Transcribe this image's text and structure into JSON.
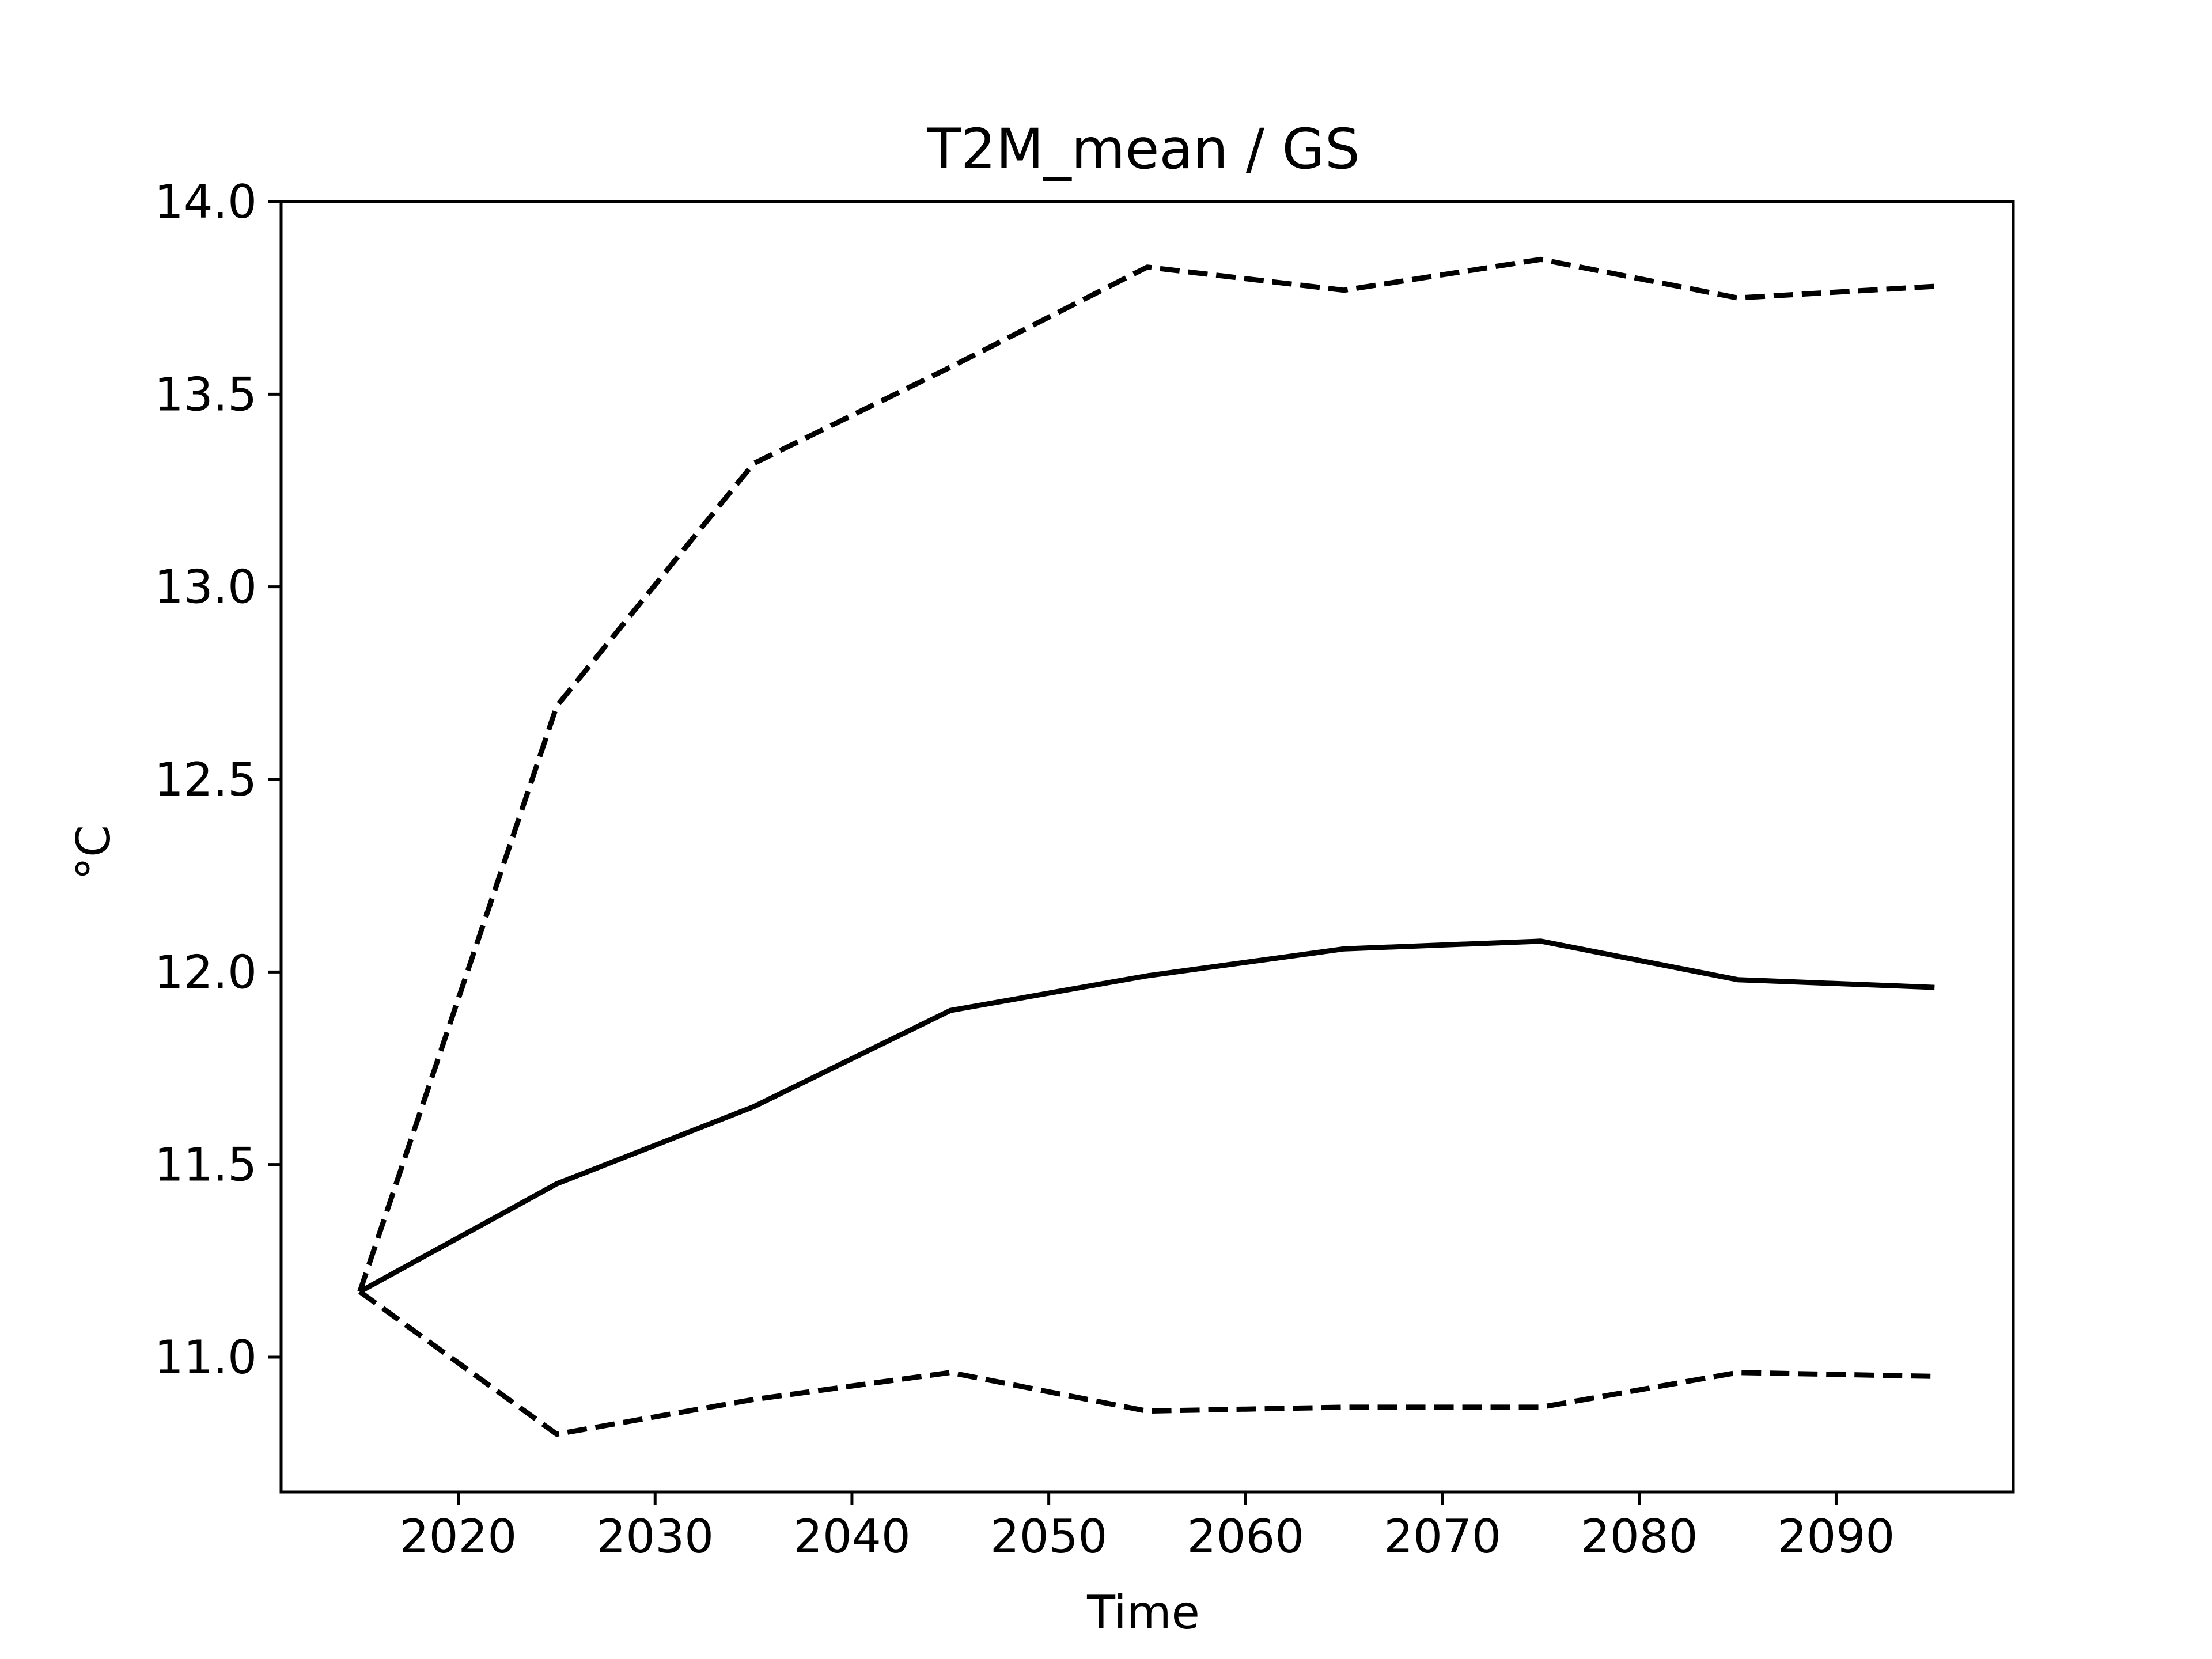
{
  "chart_data": {
    "type": "line",
    "title": "T2M_mean / GS",
    "xlabel": "Time",
    "ylabel": "°C",
    "xlim": [
      2011,
      2099
    ],
    "ylim": [
      10.65,
      14.0
    ],
    "xticks": [
      2020,
      2030,
      2040,
      2050,
      2060,
      2070,
      2080,
      2090
    ],
    "yticks": [
      11.0,
      11.5,
      12.0,
      12.5,
      13.0,
      13.5,
      14.0
    ],
    "xtick_labels": [
      "2020",
      "2030",
      "2040",
      "2050",
      "2060",
      "2070",
      "2080",
      "2090"
    ],
    "ytick_labels": [
      "11.0",
      "11.5",
      "12.0",
      "12.5",
      "13.0",
      "13.5",
      "14.0"
    ],
    "grid": false,
    "legend": false,
    "x": [
      2015,
      2025,
      2035,
      2045,
      2055,
      2065,
      2075,
      2085,
      2095
    ],
    "series": [
      {
        "style": "dashed",
        "color": "#000000",
        "values": [
          11.17,
          12.69,
          13.32,
          13.57,
          13.83,
          13.77,
          13.85,
          13.75,
          13.78
        ]
      },
      {
        "style": "solid",
        "color": "#000000",
        "values": [
          11.17,
          11.45,
          11.65,
          11.9,
          11.99,
          12.06,
          12.08,
          11.98,
          11.96
        ]
      },
      {
        "style": "dashed",
        "color": "#000000",
        "values": [
          11.17,
          10.8,
          10.89,
          10.96,
          10.86,
          10.87,
          10.87,
          10.96,
          10.95
        ]
      }
    ]
  }
}
